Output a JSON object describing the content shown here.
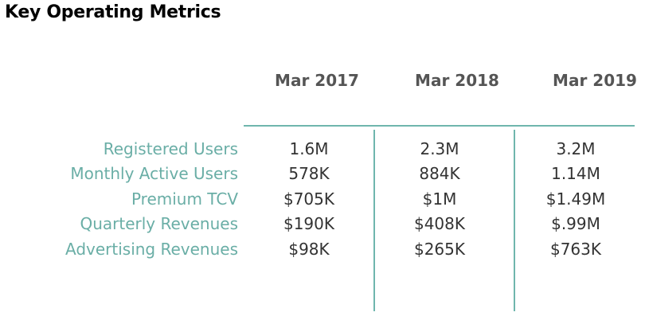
{
  "title": "Key Operating Metrics",
  "colors": {
    "accent": "#6fb6ad",
    "label": "#6aaea6",
    "header": "#555555",
    "value": "#333333"
  },
  "table": {
    "columns": [
      "Mar 2017",
      "Mar 2018",
      "Mar 2019"
    ],
    "rows": [
      {
        "label": "Registered Users",
        "values": [
          "1.6M",
          "2.3M",
          "3.2M"
        ]
      },
      {
        "label": "Monthly Active Users",
        "values": [
          "578K",
          "884K",
          "1.14M"
        ]
      },
      {
        "label": "Premium TCV",
        "values": [
          "$705K",
          "$1M",
          "$1.49M"
        ]
      },
      {
        "label": "Quarterly Revenues",
        "values": [
          "$190K",
          "$408K",
          "$.99M"
        ]
      },
      {
        "label": "Advertising Revenues",
        "values": [
          "$98K",
          "$265K",
          "$763K"
        ]
      }
    ]
  }
}
